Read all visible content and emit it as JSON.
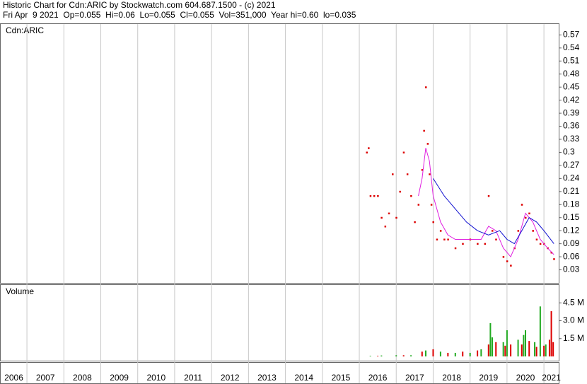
{
  "chart_data": [
    {
      "type": "line",
      "title": "Historic Chart for Cdn:ARIC by Stockwatch.com 604.687.1500 - (c) 2021",
      "subtitle": "Fri Apr  9 2021  Op=0.055  Hi=0.06  Lo=0.055  Cl=0.055  Vol=351,000  Year hi=0.60  lo=0.035",
      "label": "Cdn:ARIC",
      "xlim": [
        2006.29,
        2021.4
      ],
      "ylim": [
        0,
        0.595
      ],
      "yticks": [
        0.03,
        0.06,
        0.09,
        0.12,
        0.15,
        0.18,
        0.21,
        0.24,
        0.27,
        0.3,
        0.33,
        0.36,
        0.39,
        0.42,
        0.45,
        0.48,
        0.51,
        0.54,
        0.57
      ],
      "series": [
        {
          "color": "#dd0000",
          "style": "dots",
          "x": [
            2016.2,
            2016.25,
            2016.3,
            2016.4,
            2016.5,
            2016.6,
            2016.7,
            2016.8,
            2016.9,
            2017.0,
            2017.1,
            2017.2,
            2017.3,
            2017.4,
            2017.5,
            2017.6,
            2017.7,
            2017.75,
            2017.8,
            2017.85,
            2017.9,
            2017.95,
            2018.0,
            2018.1,
            2018.2,
            2018.3,
            2018.4,
            2018.6,
            2018.8,
            2019.0,
            2019.2,
            2019.4,
            2019.5,
            2019.6,
            2019.7,
            2019.9,
            2020.0,
            2020.1,
            2020.2,
            2020.3,
            2020.4,
            2020.5,
            2020.6,
            2020.7,
            2020.8,
            2020.9,
            2021.0,
            2021.1,
            2021.2,
            2021.27
          ],
          "values": [
            0.3,
            0.31,
            0.2,
            0.2,
            0.2,
            0.15,
            0.13,
            0.16,
            0.25,
            0.15,
            0.21,
            0.3,
            0.25,
            0.2,
            0.14,
            0.18,
            0.26,
            0.35,
            0.45,
            0.32,
            0.25,
            0.18,
            0.14,
            0.1,
            0.12,
            0.1,
            0.1,
            0.08,
            0.09,
            0.1,
            0.09,
            0.09,
            0.2,
            0.12,
            0.1,
            0.06,
            0.05,
            0.04,
            0.08,
            0.12,
            0.18,
            0.15,
            0.16,
            0.12,
            0.1,
            0.09,
            0.09,
            0.08,
            0.07,
            0.055
          ]
        },
        {
          "color": "#e020e0",
          "style": "line",
          "x": [
            2017.6,
            2017.7,
            2017.8,
            2017.9,
            2018.0,
            2018.2,
            2018.4,
            2018.6,
            2018.8,
            2019.0,
            2019.3,
            2019.5,
            2019.7,
            2019.9,
            2020.1,
            2020.3,
            2020.5,
            2020.7,
            2020.9,
            2021.1,
            2021.27
          ],
          "values": [
            0.2,
            0.24,
            0.31,
            0.28,
            0.2,
            0.14,
            0.11,
            0.1,
            0.1,
            0.1,
            0.1,
            0.13,
            0.12,
            0.08,
            0.06,
            0.1,
            0.16,
            0.14,
            0.1,
            0.08,
            0.065
          ]
        },
        {
          "color": "#1010d0",
          "style": "line",
          "x": [
            2018.0,
            2018.3,
            2018.6,
            2018.9,
            2019.2,
            2019.5,
            2019.8,
            2020.0,
            2020.2,
            2020.4,
            2020.6,
            2020.8,
            2021.0,
            2021.27
          ],
          "values": [
            0.24,
            0.2,
            0.17,
            0.14,
            0.12,
            0.11,
            0.12,
            0.1,
            0.09,
            0.12,
            0.15,
            0.14,
            0.12,
            0.09
          ]
        }
      ]
    },
    {
      "type": "bar",
      "label": "Volume",
      "xlim": [
        2006.29,
        2021.4
      ],
      "ylim": [
        0,
        6
      ],
      "yticks": [
        {
          "value": 1.5,
          "label": "1.5 M"
        },
        {
          "value": 3.0,
          "label": "3.0 M"
        },
        {
          "value": 4.5,
          "label": "4.5 M"
        }
      ],
      "xticks": [
        2006,
        2007,
        2008,
        2009,
        2010,
        2011,
        2012,
        2013,
        2014,
        2015,
        2016,
        2017,
        2018,
        2019,
        2020,
        2021
      ],
      "series": [
        {
          "color": "#22aa22",
          "x": [
            2016.3,
            2016.6,
            2017.0,
            2017.4,
            2017.8,
            2018.2,
            2018.6,
            2019.0,
            2019.3,
            2019.55,
            2019.6,
            2019.9,
            2020.0,
            2020.3,
            2020.45,
            2020.5,
            2020.75,
            2020.9,
            2021.05
          ],
          "values": [
            0.05,
            0.08,
            0.1,
            0.1,
            0.5,
            0.4,
            0.3,
            0.3,
            0.6,
            2.8,
            1.6,
            1.2,
            2.2,
            1.4,
            1.8,
            2.2,
            1.2,
            4.2,
            1.0
          ]
        },
        {
          "color": "#dd0000",
          "x": [
            2016.5,
            2017.2,
            2017.7,
            2018.0,
            2018.4,
            2018.8,
            2019.2,
            2019.5,
            2019.7,
            2019.95,
            2020.1,
            2020.4,
            2020.6,
            2020.8,
            2021.0,
            2021.15,
            2021.2,
            2021.25
          ],
          "values": [
            0.05,
            0.1,
            0.4,
            0.6,
            0.3,
            0.4,
            0.5,
            1.0,
            1.2,
            0.9,
            1.0,
            1.0,
            1.3,
            0.8,
            0.9,
            1.4,
            3.8,
            1.2
          ]
        }
      ]
    }
  ]
}
